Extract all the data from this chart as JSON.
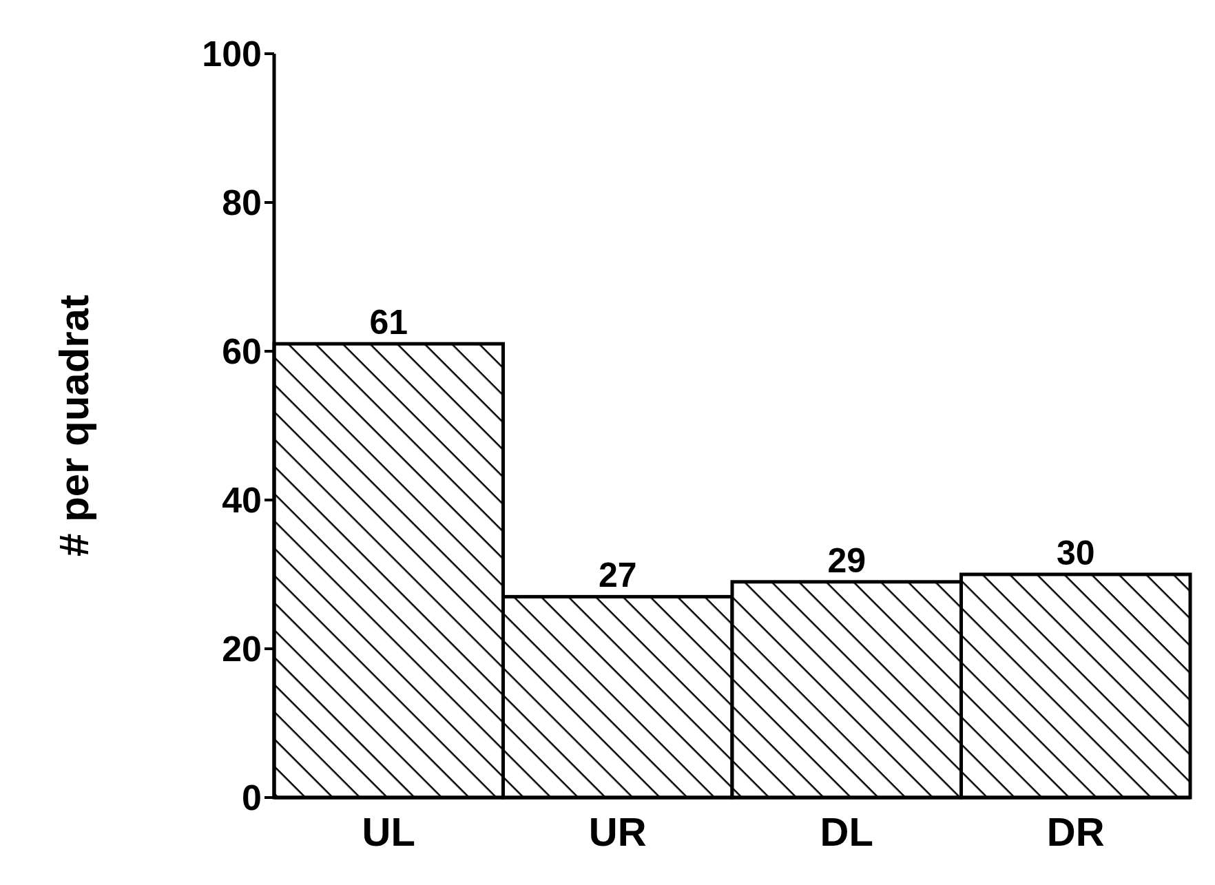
{
  "chart_data": {
    "type": "bar",
    "ylabel": "# per quadrat",
    "categories": [
      "UL",
      "UR",
      "DL",
      "DR"
    ],
    "values": [
      61,
      27,
      29,
      30
    ],
    "color": "#000000",
    "ylim": [
      0,
      100
    ],
    "yticks": [
      0,
      20,
      40,
      60,
      80,
      100
    ],
    "data_labels": true,
    "grid": false
  }
}
